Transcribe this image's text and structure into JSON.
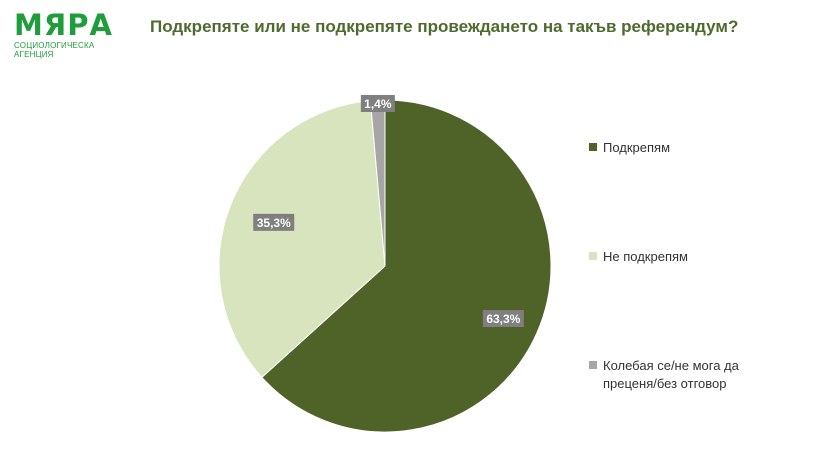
{
  "logo": {
    "word": "МЯРА",
    "subtitle": "СОЦИОЛОГИЧЕСКА АГЕНЦИЯ"
  },
  "colors": {
    "brand": "#1e9e3a",
    "title": "#4e6b2e",
    "support": "#4f6228",
    "oppose": "#d7e4bd",
    "undecided": "#a6a6a6",
    "label_bg": "#7f7f7f"
  },
  "chart_data": {
    "type": "pie",
    "title": "Подкрепяте или не подкрепяте провеждането на такъв референдум?",
    "categories": [
      "Подкрепям",
      "Не подкрепям",
      "Колебая се/не мога да преценя/без отговор"
    ],
    "values": [
      63.3,
      35.3,
      1.4
    ],
    "data_labels": [
      "63,3%",
      "35,3%",
      "1,4%"
    ],
    "unit": "%",
    "legend_position": "right"
  }
}
